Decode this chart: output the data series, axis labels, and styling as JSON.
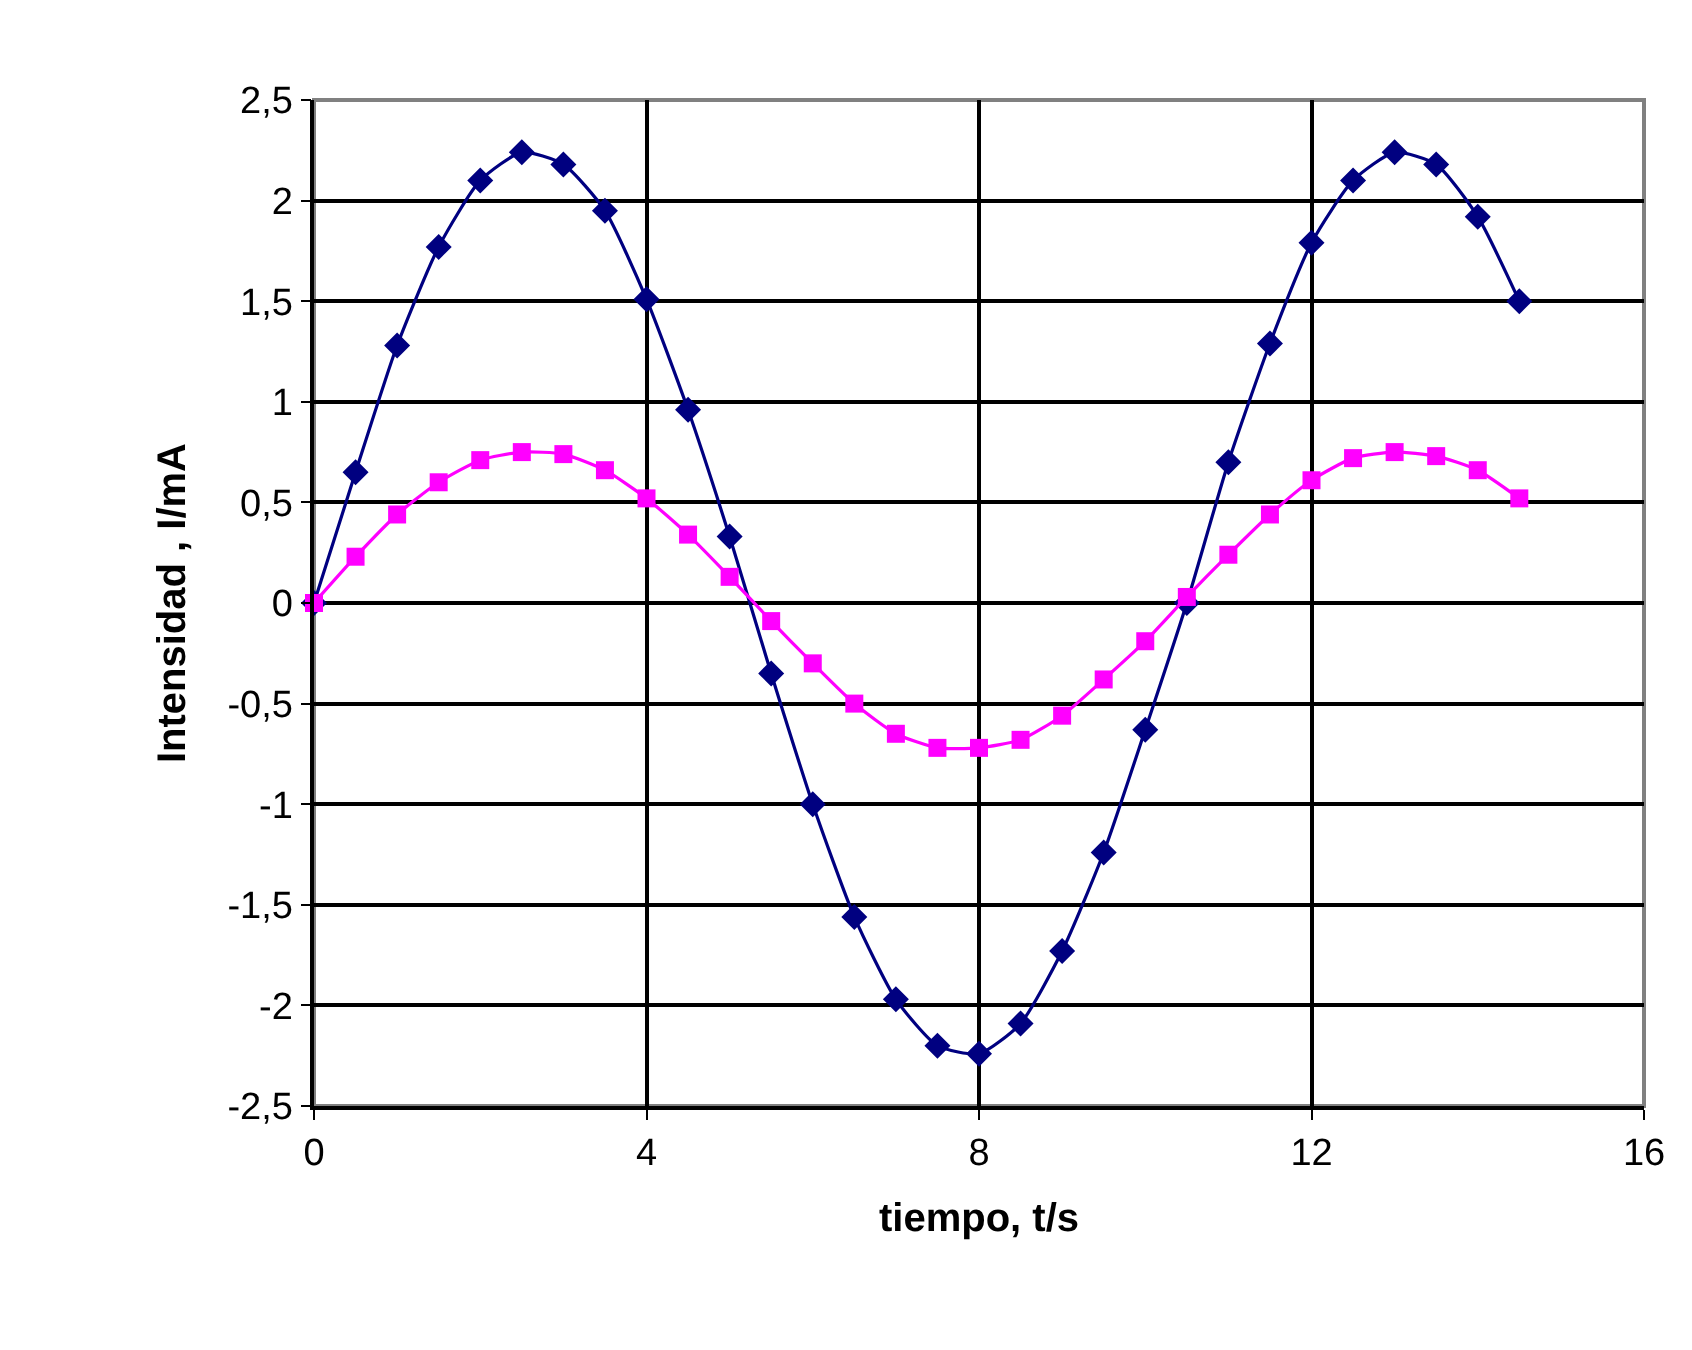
{
  "chart_data": {
    "type": "line",
    "xlabel": "tiempo, t/s",
    "ylabel": "Intensidad , I/mA",
    "x": [
      0,
      0.5,
      1,
      1.5,
      2,
      2.5,
      3,
      3.5,
      4,
      4.5,
      5,
      5.5,
      6,
      6.5,
      7,
      7.5,
      8,
      8.5,
      9,
      9.5,
      10,
      10.5,
      11,
      11.5,
      12,
      12.5,
      13,
      13.5,
      14,
      14.5
    ],
    "series": [
      {
        "color": "#000080",
        "marker": "diamond",
        "values": [
          0,
          0.65,
          1.28,
          1.77,
          2.1,
          2.24,
          2.18,
          1.95,
          1.51,
          0.96,
          0.33,
          -0.35,
          -1.0,
          -1.56,
          -1.97,
          -2.2,
          -2.24,
          -2.09,
          -1.73,
          -1.24,
          -0.63,
          0.0,
          0.7,
          1.29,
          1.79,
          2.1,
          2.24,
          2.18,
          1.92,
          1.5
        ]
      },
      {
        "color": "#ff00ff",
        "marker": "square",
        "values": [
          0,
          0.23,
          0.44,
          0.6,
          0.71,
          0.75,
          0.74,
          0.66,
          0.52,
          0.34,
          0.13,
          -0.09,
          -0.3,
          -0.5,
          -0.65,
          -0.72,
          -0.72,
          -0.68,
          -0.56,
          -0.38,
          -0.19,
          0.03,
          0.24,
          0.44,
          0.61,
          0.72,
          0.75,
          0.73,
          0.66,
          0.52
        ]
      }
    ],
    "xlim": [
      0,
      16
    ],
    "xticks": [
      0,
      4,
      8,
      12,
      16
    ],
    "ylim": [
      -2.5,
      2.5
    ],
    "yticks": [
      {
        "value": -2.5,
        "label": "-2,5"
      },
      -2,
      {
        "value": -1.5,
        "label": "-1,5"
      },
      -1,
      {
        "value": -0.5,
        "label": "-0,5"
      },
      0,
      {
        "value": 0.5,
        "label": "0,5"
      },
      1,
      {
        "value": 1.5,
        "label": "1,5"
      },
      2,
      {
        "value": 2.5,
        "label": "2,5"
      }
    ],
    "grid": true,
    "line_style": "solid"
  }
}
